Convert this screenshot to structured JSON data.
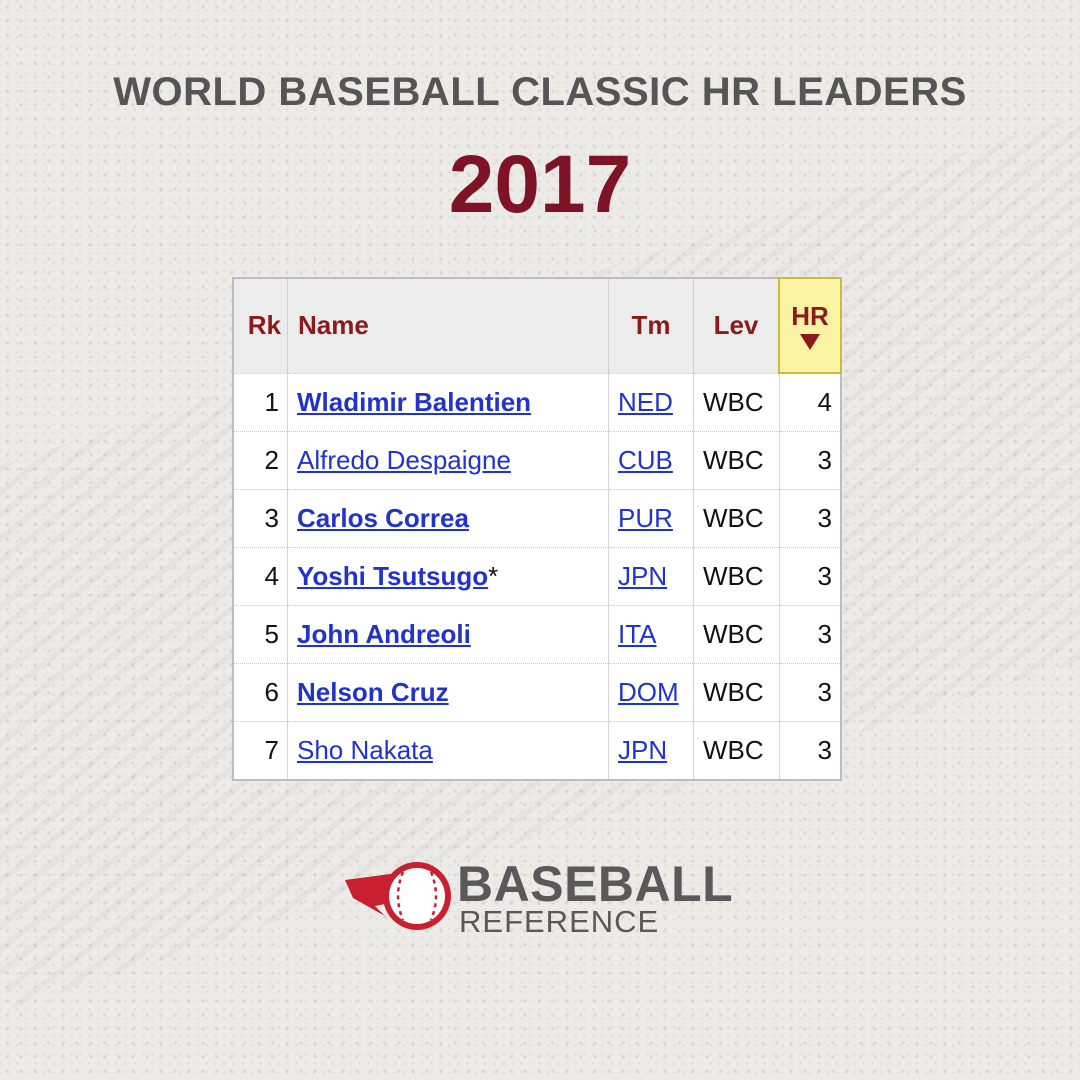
{
  "header": {
    "title": "WORLD BASEBALL CLASSIC HR LEADERS",
    "year": "2017"
  },
  "table": {
    "columns": {
      "rk": "Rk",
      "name": "Name",
      "tm": "Tm",
      "lev": "Lev",
      "hr": "HR"
    },
    "rows": [
      {
        "rk": "1",
        "name": "Wladimir Balentien",
        "suffix": "",
        "bold": true,
        "tm": "NED",
        "lev": "WBC",
        "hr": "4"
      },
      {
        "rk": "2",
        "name": "Alfredo Despaigne",
        "suffix": "",
        "bold": false,
        "tm": "CUB",
        "lev": "WBC",
        "hr": "3"
      },
      {
        "rk": "3",
        "name": "Carlos Correa",
        "suffix": "",
        "bold": true,
        "tm": "PUR",
        "lev": "WBC",
        "hr": "3"
      },
      {
        "rk": "4",
        "name": "Yoshi Tsutsugo",
        "suffix": "*",
        "bold": true,
        "tm": "JPN",
        "lev": "WBC",
        "hr": "3"
      },
      {
        "rk": "5",
        "name": "John Andreoli",
        "suffix": "",
        "bold": true,
        "tm": "ITA",
        "lev": "WBC",
        "hr": "3"
      },
      {
        "rk": "6",
        "name": "Nelson Cruz",
        "suffix": "",
        "bold": true,
        "tm": "DOM",
        "lev": "WBC",
        "hr": "3"
      },
      {
        "rk": "7",
        "name": "Sho Nakata",
        "suffix": "",
        "bold": false,
        "tm": "JPN",
        "lev": "WBC",
        "hr": "3"
      }
    ]
  },
  "logo": {
    "line1": "BASEBALL",
    "line2": "REFERENCE"
  },
  "colors": {
    "year": "#7d1325",
    "header_text": "#8b1a1a",
    "link": "#2233cc",
    "sort_highlight": "#fbf3a4",
    "logo_red": "#c8202f"
  }
}
